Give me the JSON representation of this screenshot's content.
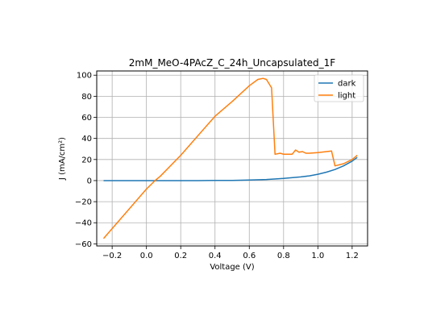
{
  "chart_data": {
    "type": "line",
    "title": "2mM_MeO-4PAcZ_C_24h_Uncapsulated_1F",
    "xlabel": "Voltage (V)",
    "ylabel": "J (mA/cm²)",
    "xlim": [
      -0.29,
      1.29
    ],
    "ylim": [
      -62,
      104
    ],
    "xticks": [
      -0.2,
      0.0,
      0.2,
      0.4,
      0.6,
      0.8,
      1.0,
      1.2
    ],
    "xtick_labels": [
      "−0.2",
      "0.0",
      "0.2",
      "0.4",
      "0.6",
      "0.8",
      "1.0",
      "1.2"
    ],
    "yticks": [
      -60,
      -40,
      -20,
      0,
      20,
      40,
      60,
      80,
      100
    ],
    "ytick_labels": [
      "−60",
      "−40",
      "−20",
      "0",
      "20",
      "40",
      "60",
      "80",
      "100"
    ],
    "grid": true,
    "legend_position": "top-right",
    "series": [
      {
        "name": "dark",
        "color": "#1f77b4",
        "x": [
          -0.25,
          -0.1,
          0.0,
          0.1,
          0.2,
          0.3,
          0.4,
          0.5,
          0.6,
          0.7,
          0.8,
          0.9,
          0.95,
          1.0,
          1.05,
          1.1,
          1.15,
          1.2,
          1.23
        ],
        "y": [
          0,
          0,
          0,
          0,
          0,
          0,
          0.1,
          0.2,
          0.5,
          1.0,
          2.0,
          3.5,
          4.5,
          6.0,
          8.0,
          10.5,
          14.0,
          18.5,
          22.0
        ]
      },
      {
        "name": "light",
        "color": "#ff7f0e",
        "x": [
          -0.25,
          0.0,
          0.05,
          0.08,
          0.2,
          0.4,
          0.5,
          0.6,
          0.65,
          0.68,
          0.7,
          0.73,
          0.75,
          0.78,
          0.8,
          0.85,
          0.87,
          0.89,
          0.91,
          0.93,
          0.95,
          1.0,
          1.05,
          1.08,
          1.1,
          1.15,
          1.2,
          1.23
        ],
        "y": [
          -55,
          -8,
          0,
          4,
          24,
          61,
          75,
          90,
          96,
          97,
          96,
          88,
          25,
          26,
          25,
          25,
          29,
          27,
          27.5,
          26,
          26,
          26.5,
          27.5,
          28,
          14,
          16,
          20,
          24
        ]
      }
    ]
  }
}
